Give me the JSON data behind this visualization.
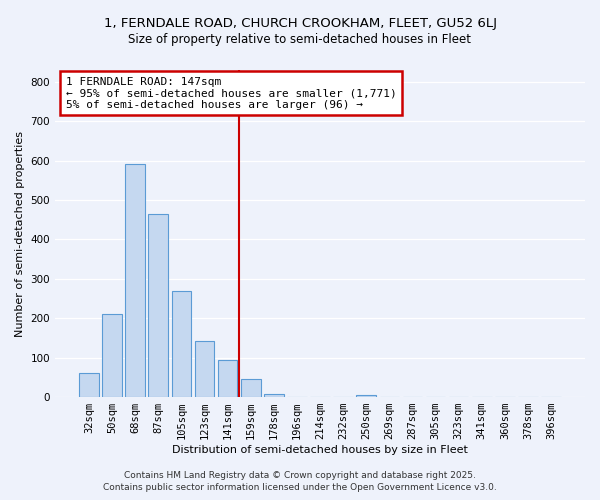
{
  "title_line1": "1, FERNDALE ROAD, CHURCH CROOKHAM, FLEET, GU52 6LJ",
  "title_line2": "Size of property relative to semi-detached houses in Fleet",
  "xlabel": "Distribution of semi-detached houses by size in Fleet",
  "ylabel": "Number of semi-detached properties",
  "bar_labels": [
    "32sqm",
    "50sqm",
    "68sqm",
    "87sqm",
    "105sqm",
    "123sqm",
    "141sqm",
    "159sqm",
    "178sqm",
    "196sqm",
    "214sqm",
    "232sqm",
    "250sqm",
    "269sqm",
    "287sqm",
    "305sqm",
    "323sqm",
    "341sqm",
    "360sqm",
    "378sqm",
    "396sqm"
  ],
  "bar_values": [
    60,
    210,
    592,
    464,
    270,
    143,
    93,
    47,
    8,
    0,
    0,
    0,
    5,
    0,
    0,
    0,
    0,
    0,
    0,
    0,
    0
  ],
  "bar_color": "#c5d8f0",
  "bar_edge_color": "#5b9bd5",
  "vline_x_index": 6.5,
  "vline_color": "#cc0000",
  "annotation_title": "1 FERNDALE ROAD: 147sqm",
  "annotation_line1": "← 95% of semi-detached houses are smaller (1,771)",
  "annotation_line2": "5% of semi-detached houses are larger (96) →",
  "annotation_box_color": "#ffffff",
  "annotation_box_edge": "#cc0000",
  "ylim": [
    0,
    830
  ],
  "yticks": [
    0,
    100,
    200,
    300,
    400,
    500,
    600,
    700,
    800
  ],
  "footnote_line1": "Contains HM Land Registry data © Crown copyright and database right 2025.",
  "footnote_line2": "Contains public sector information licensed under the Open Government Licence v3.0.",
  "background_color": "#eef2fb",
  "grid_color": "#ffffff",
  "title1_fontsize": 9.5,
  "title2_fontsize": 8.5,
  "ylabel_fontsize": 8,
  "xlabel_fontsize": 8,
  "tick_fontsize": 7.5,
  "annot_fontsize": 8
}
